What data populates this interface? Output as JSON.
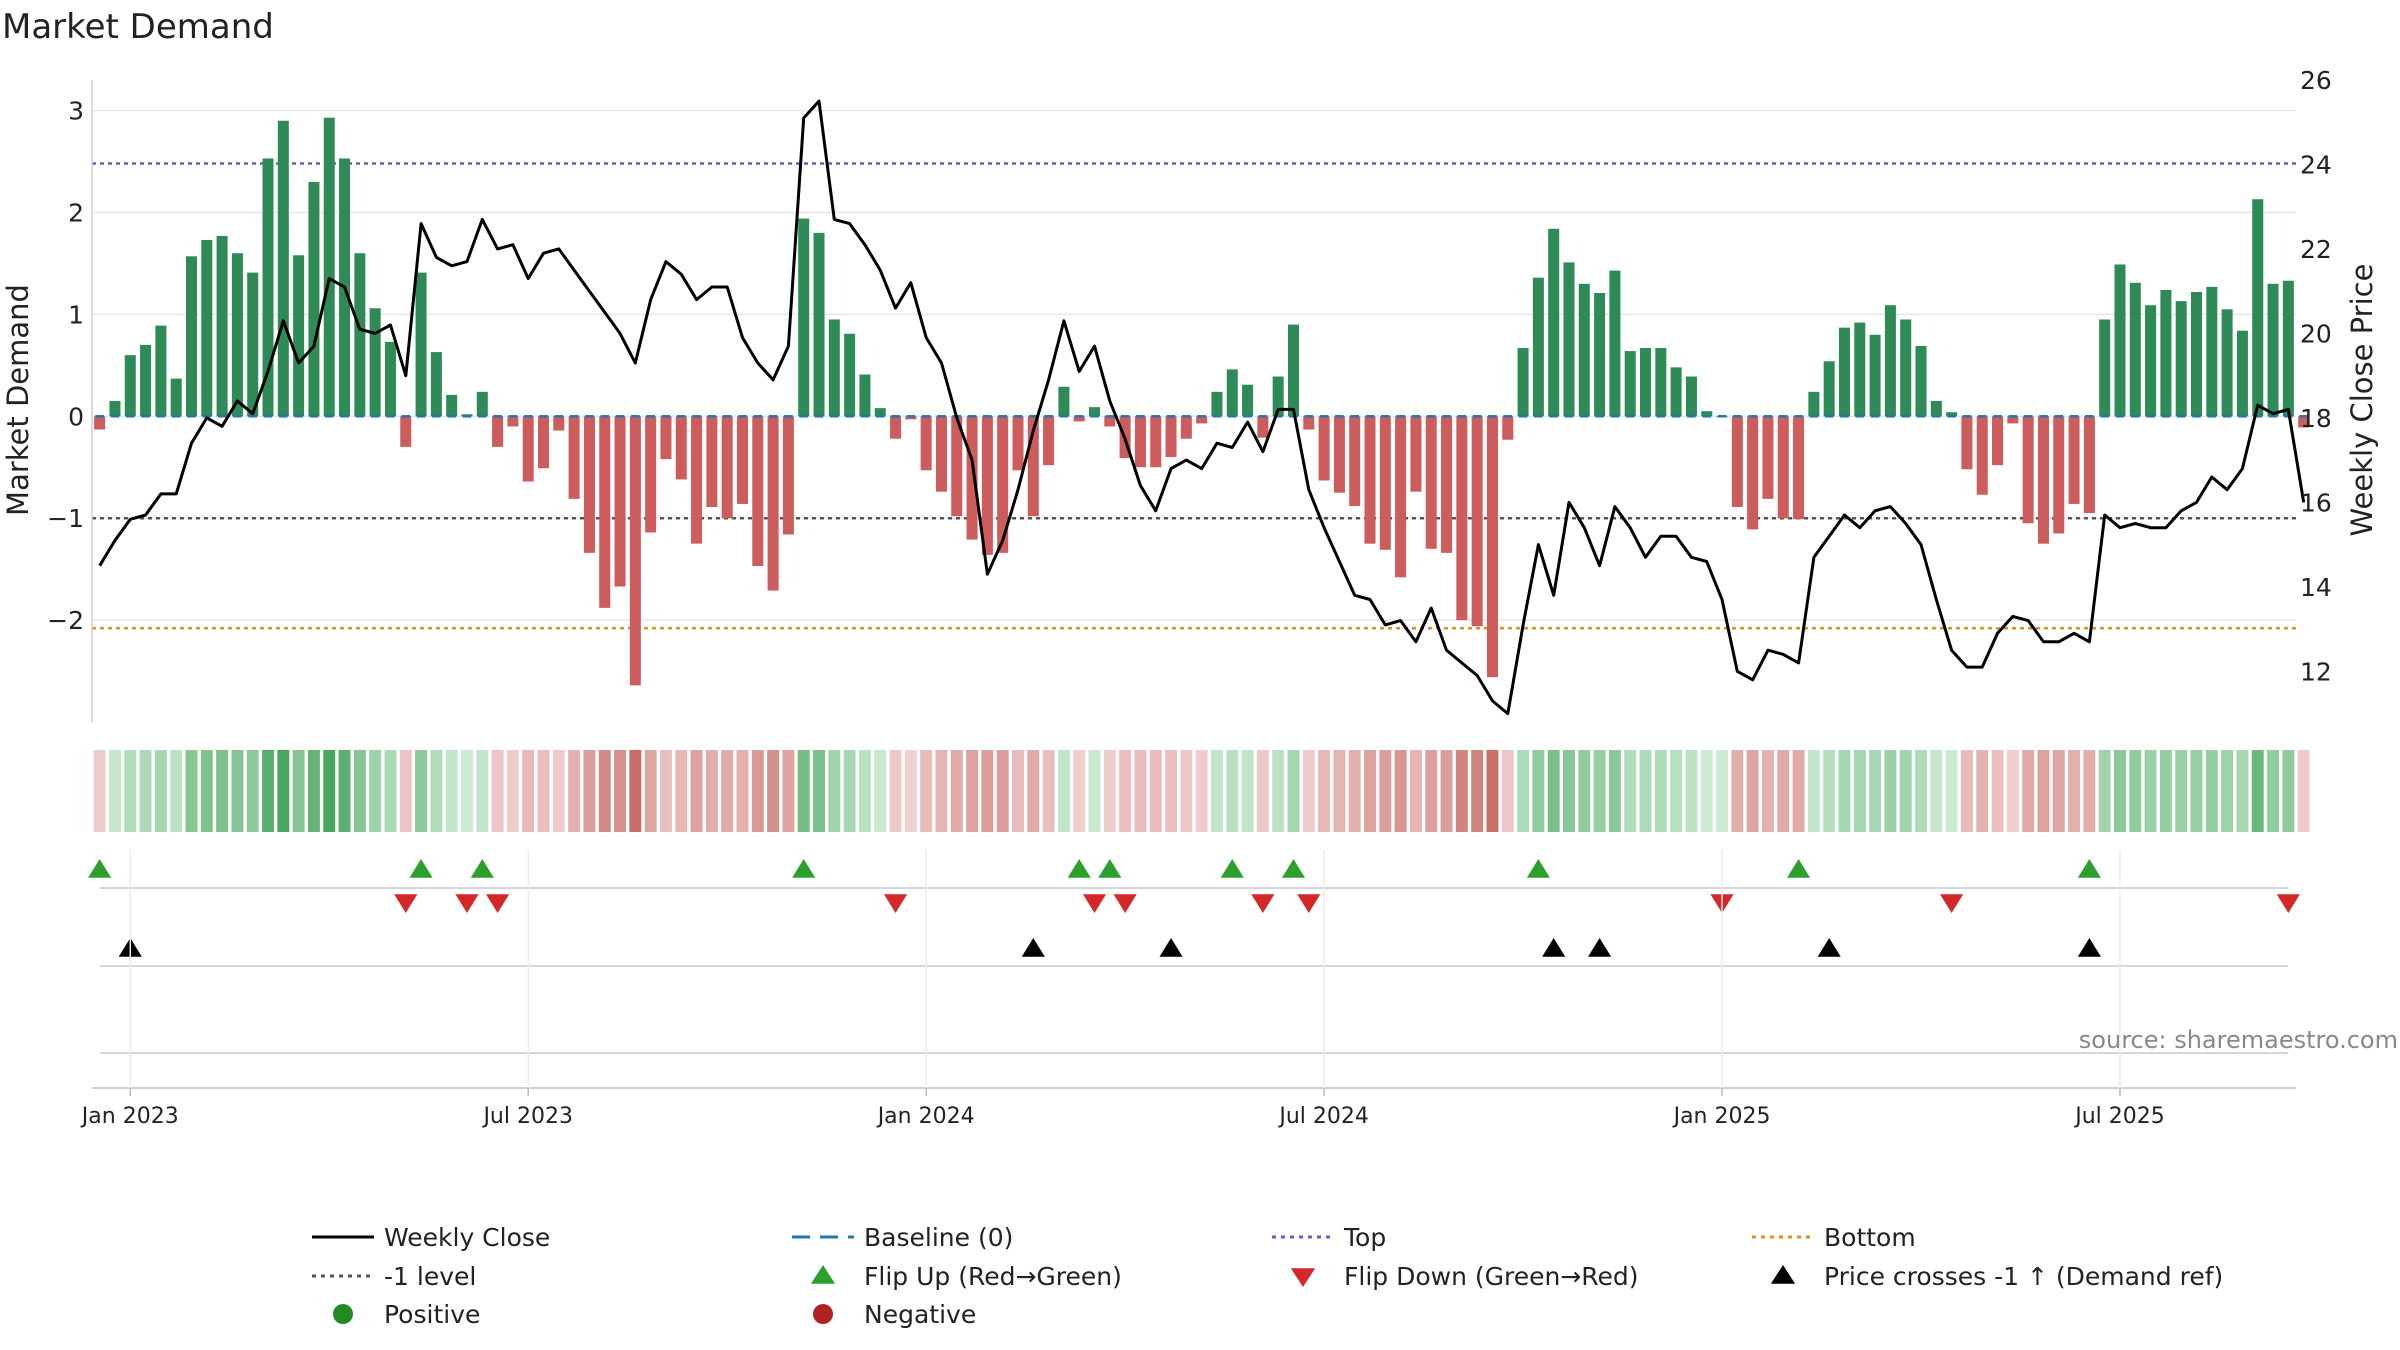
{
  "chart_data": {
    "type": "bar",
    "title": "Market Demand",
    "ylabel_left": "Market Demand",
    "ylabel_right": "Weekly Close Price",
    "left_ylim": [
      -3,
      3.3
    ],
    "right_ylim": [
      10.8,
      26
    ],
    "left_ticks": [
      {
        "v": 3,
        "label": "3"
      },
      {
        "v": 2,
        "label": "2"
      },
      {
        "v": 1,
        "label": "1"
      },
      {
        "v": 0,
        "label": "0"
      },
      {
        "v": -1,
        "label": "−1"
      },
      {
        "v": -2,
        "label": "−2"
      }
    ],
    "right_ticks": [
      12,
      14,
      16,
      18,
      20,
      22,
      24,
      26
    ],
    "x_ticks": [
      {
        "week": 2,
        "label": "Jan 2023"
      },
      {
        "week": 28,
        "label": "Jul 2023"
      },
      {
        "week": 54,
        "label": "Jan 2024"
      },
      {
        "week": 80,
        "label": "Jul 2024"
      },
      {
        "week": 106,
        "label": "Jan 2025"
      },
      {
        "week": 132,
        "label": "Jul 2025"
      }
    ],
    "x_range": [
      -0.5,
      143.5
    ],
    "reference_lines": {
      "top": 2.48,
      "bottom": -2.08,
      "minus_one": -1,
      "baseline": 0
    },
    "demand": [
      -0.13,
      0.15,
      0.6,
      0.7,
      0.89,
      0.37,
      1.57,
      1.73,
      1.77,
      1.6,
      1.41,
      2.53,
      2.9,
      1.58,
      2.3,
      2.93,
      2.53,
      1.6,
      1.06,
      0.73,
      -0.3,
      1.41,
      0.63,
      0.21,
      0.02,
      0.24,
      -0.3,
      -0.1,
      -0.64,
      -0.51,
      -0.14,
      -0.81,
      -1.34,
      -1.88,
      -1.67,
      -2.64,
      -1.14,
      -0.42,
      -0.62,
      -1.25,
      -0.89,
      -1.0,
      -0.86,
      -1.47,
      -1.71,
      -1.16,
      1.94,
      1.8,
      0.95,
      0.81,
      0.41,
      0.08,
      -0.22,
      -0.03,
      -0.53,
      -0.74,
      -0.98,
      -1.21,
      -1.36,
      -1.34,
      -0.53,
      -0.98,
      -0.48,
      0.29,
      -0.05,
      0.09,
      -0.1,
      -0.41,
      -0.5,
      -0.5,
      -0.4,
      -0.22,
      -0.07,
      0.24,
      0.46,
      0.31,
      -0.21,
      0.39,
      0.9,
      -0.13,
      -0.63,
      -0.75,
      -0.88,
      -1.25,
      -1.31,
      -1.58,
      -0.74,
      -1.3,
      -1.34,
      -2.0,
      -2.06,
      -2.56,
      -0.23,
      0.67,
      1.36,
      1.84,
      1.51,
      1.3,
      1.21,
      1.43,
      0.64,
      0.67,
      0.67,
      0.48,
      0.39,
      0.05,
      0.0,
      -0.89,
      -1.11,
      -0.81,
      -1.0,
      -1.01,
      0.24,
      0.54,
      0.87,
      0.92,
      0.8,
      1.09,
      0.95,
      0.69,
      0.15,
      0.04,
      -0.52,
      -0.77,
      -0.48,
      -0.07,
      -1.05,
      -1.25,
      -1.15,
      -0.86,
      -0.95,
      0.95,
      1.49,
      1.31,
      1.09,
      1.24,
      1.13,
      1.22,
      1.27,
      1.05,
      0.84,
      2.13,
      1.3,
      1.33,
      -0.11
    ],
    "price": [
      14.5,
      15.1,
      15.6,
      15.7,
      16.2,
      16.2,
      17.4,
      18.0,
      17.8,
      18.4,
      18.1,
      19.1,
      20.3,
      19.3,
      19.7,
      21.3,
      21.1,
      20.1,
      20.0,
      20.2,
      19.0,
      22.6,
      21.8,
      21.6,
      21.7,
      22.7,
      22.0,
      22.1,
      21.3,
      21.9,
      22.0,
      21.5,
      21.0,
      20.5,
      20.0,
      19.3,
      20.8,
      21.7,
      21.4,
      20.8,
      21.1,
      21.1,
      19.9,
      19.3,
      18.9,
      19.7,
      25.1,
      25.5,
      22.7,
      22.6,
      22.1,
      21.5,
      20.6,
      21.2,
      19.9,
      19.3,
      18.0,
      17.0,
      14.3,
      15.1,
      16.3,
      17.7,
      18.9,
      20.3,
      19.1,
      19.7,
      18.4,
      17.5,
      16.4,
      15.8,
      16.8,
      17.0,
      16.8,
      17.4,
      17.3,
      17.9,
      17.2,
      18.2,
      18.2,
      16.3,
      15.4,
      14.6,
      13.8,
      13.7,
      13.1,
      13.2,
      12.7,
      13.5,
      12.5,
      12.2,
      11.9,
      11.3,
      11.0,
      13.1,
      15.0,
      13.8,
      16.0,
      15.4,
      14.5,
      15.9,
      15.4,
      14.7,
      15.2,
      15.2,
      14.7,
      14.6,
      13.7,
      12.0,
      11.8,
      12.5,
      12.4,
      12.2,
      14.7,
      15.2,
      15.7,
      15.4,
      15.8,
      15.9,
      15.5,
      15.0,
      13.7,
      12.5,
      12.1,
      12.1,
      12.9,
      13.3,
      13.2,
      12.7,
      12.7,
      12.9,
      12.7,
      15.7,
      15.4,
      15.5,
      15.4,
      15.4,
      15.8,
      16.0,
      16.6,
      16.3,
      16.8,
      18.3,
      18.1,
      18.2,
      16.0
    ],
    "flip_up_weeks": [
      0,
      21,
      25,
      46,
      64,
      66,
      74,
      78,
      94,
      111,
      130
    ],
    "flip_down_weeks": [
      20,
      24,
      26,
      52,
      65,
      67,
      76,
      79,
      106,
      121,
      143
    ],
    "cross_weeks": [
      2,
      61,
      70,
      95,
      98,
      113,
      130
    ],
    "colors": {
      "positive_bar": "#2e8b57",
      "negative_bar": "#cd5c5c",
      "price_line": "#000000",
      "baseline": "#1f77b4",
      "top_line": "#6a5acd",
      "bottom_line": "#e08c1e",
      "minus_one_line": "#555555",
      "flip_up": "#2ca02c",
      "flip_down": "#d62728",
      "cross": "#000000",
      "positive_dot": "#228b22",
      "negative_dot": "#b22222"
    },
    "legend": {
      "placement": "bottom",
      "entries": [
        {
          "key": "weekly_close",
          "label": "Weekly Close",
          "marker": "line",
          "color": "#000000"
        },
        {
          "key": "baseline",
          "label": "Baseline (0)",
          "marker": "dash",
          "color": "#1f77b4"
        },
        {
          "key": "top",
          "label": "Top",
          "marker": "dot-line",
          "color": "#6a5acd"
        },
        {
          "key": "bottom",
          "label": "Bottom",
          "marker": "dot-line",
          "color": "#e08c1e"
        },
        {
          "key": "minus_one",
          "label": "-1 level",
          "marker": "dot-line",
          "color": "#555555"
        },
        {
          "key": "flip_up",
          "label": "Flip Up (Red→Green)",
          "marker": "tri-up",
          "color": "#2ca02c"
        },
        {
          "key": "flip_down",
          "label": "Flip Down (Green→Red)",
          "marker": "tri-down",
          "color": "#d62728"
        },
        {
          "key": "cross",
          "label": "Price crosses -1 ↑ (Demand ref)",
          "marker": "tri-up",
          "color": "#000000"
        },
        {
          "key": "positive",
          "label": "Positive",
          "marker": "circle",
          "color": "#228b22"
        },
        {
          "key": "negative",
          "label": "Negative",
          "marker": "circle",
          "color": "#b22222"
        }
      ]
    },
    "source": "source: sharemaestro.com"
  }
}
